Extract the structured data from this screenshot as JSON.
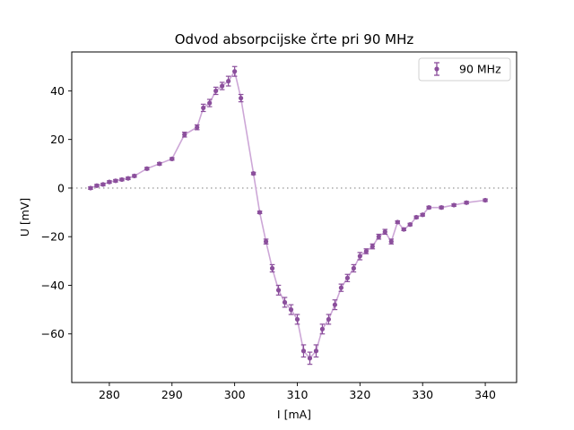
{
  "chart_data": {
    "type": "scatter",
    "title": "Odvod absorpcijske črte pri 90 MHz",
    "xlabel": "I [mA]",
    "ylabel": "U [mV]",
    "xlim": [
      274,
      345
    ],
    "ylim": [
      -80,
      56
    ],
    "xticks": [
      280,
      290,
      300,
      310,
      320,
      330,
      340
    ],
    "yticks": [
      -60,
      -40,
      -20,
      0,
      20,
      40
    ],
    "xtick_labels": [
      "280",
      "290",
      "300",
      "310",
      "320",
      "330",
      "340"
    ],
    "ytick_labels": [
      "−60",
      "−40",
      "−20",
      "0",
      "20",
      "40"
    ],
    "grid": false,
    "legend": "top-right",
    "reference_line": {
      "y": 0,
      "style": "dotted"
    },
    "colors": {
      "marker": "#8b4f9c",
      "line": "#cda7d7",
      "zero_line": "#a0a0a0"
    },
    "series": [
      {
        "name": "90 MHz",
        "x": [
          277,
          278,
          279,
          280,
          281,
          282,
          283,
          284,
          286,
          288,
          290,
          292,
          294,
          295,
          296,
          297,
          298,
          299,
          300,
          301,
          303,
          304,
          305,
          306,
          307,
          308,
          309,
          310,
          311,
          312,
          313,
          314,
          315,
          316,
          317,
          318,
          319,
          320,
          321,
          322,
          323,
          324,
          325,
          326,
          327,
          328,
          329,
          330,
          331,
          333,
          335,
          337,
          340
        ],
        "y": [
          0,
          1,
          1.5,
          2.5,
          3,
          3.5,
          4,
          5,
          8,
          10,
          12,
          22,
          25,
          33,
          35,
          40,
          42,
          44,
          48,
          37,
          6,
          -10,
          -22,
          -33,
          -42,
          -47,
          -50,
          -54,
          -67,
          -70,
          -67,
          -58,
          -54,
          -48,
          -41,
          -37,
          -33,
          -28,
          -26,
          -24,
          -20,
          -18,
          -22,
          -14,
          -17,
          -15,
          -12,
          -11,
          -8,
          -8,
          -7,
          -6,
          -5
        ],
        "yerr": [
          0.5,
          0.5,
          0.5,
          0.5,
          0.5,
          0.5,
          0.5,
          0.5,
          0.5,
          0.5,
          0.5,
          1,
          1,
          1.5,
          1.5,
          1.5,
          1.5,
          2,
          2,
          1.5,
          0.5,
          0.5,
          1,
          1.5,
          2,
          2,
          2,
          2,
          2.5,
          2.5,
          2.5,
          2,
          2,
          2,
          1.5,
          1.5,
          1.5,
          1.5,
          1,
          1,
          1,
          1,
          1,
          0.5,
          0.5,
          0.5,
          0.5,
          0.5,
          0.5,
          0.5,
          0.5,
          0.5,
          0.5
        ]
      }
    ]
  }
}
